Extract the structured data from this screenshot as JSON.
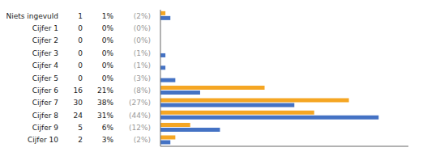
{
  "chart_data": {
    "type": "bar",
    "orientation": "horizontal",
    "categories": [
      "Niets ingevuld",
      "Cijfer 1",
      "Cijfer 2",
      "Cijfer 3",
      "Cijfer 4",
      "Cijfer 5",
      "Cijfer 6",
      "Cijfer 7",
      "Cijfer 8",
      "Cijfer 9",
      "Cijfer 10"
    ],
    "counts": [
      1,
      0,
      0,
      0,
      0,
      0,
      16,
      30,
      24,
      5,
      2
    ],
    "series": [
      {
        "color": "#f5a623",
        "values": [
          1,
          0,
          0,
          0,
          0,
          0,
          21,
          38,
          31,
          6,
          3
        ],
        "value_labels": [
          "1%",
          "0%",
          "0%",
          "0%",
          "0%",
          "0%",
          "21%",
          "38%",
          "31%",
          "6%",
          "3%"
        ]
      },
      {
        "color": "#4472c4",
        "values": [
          2,
          0,
          0,
          1,
          1,
          3,
          8,
          27,
          44,
          12,
          2
        ],
        "value_labels": [
          "(2%)",
          "(0%)",
          "(0%)",
          "(1%)",
          "(1%)",
          "(3%)",
          "(8%)",
          "(27%)",
          "(44%)",
          "(12%)",
          "(2%)"
        ]
      }
    ],
    "xlim": [
      0,
      50
    ],
    "data_labels": true,
    "tick_labels": "y"
  }
}
